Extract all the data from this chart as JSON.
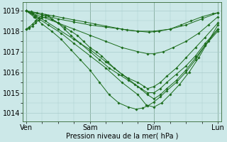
{
  "xlabel": "Pression niveau de la mer( hPa )",
  "bg_color": "#cce8e8",
  "grid_color": "#aacccc",
  "line_color": "#1a6b1a",
  "marker": "D",
  "markersize": 1.8,
  "linewidth": 0.7,
  "ylim": [
    1013.6,
    1019.4
  ],
  "yticks": [
    1014,
    1015,
    1016,
    1017,
    1018,
    1019
  ],
  "xtick_labels": [
    "Ven",
    "Sam",
    "Dim",
    "Lun"
  ],
  "xtick_positions": [
    0,
    1,
    2,
    3
  ],
  "detailed_series": [
    {
      "x": [
        0.0,
        0.08,
        0.17,
        0.25,
        0.42,
        0.58,
        0.75,
        0.92,
        1.08,
        1.25,
        1.42,
        1.58,
        1.75,
        1.92,
        2.08,
        2.25,
        2.42,
        2.58,
        2.75,
        2.92,
        3.0
      ],
      "y": [
        1019.0,
        1018.95,
        1018.9,
        1018.85,
        1018.75,
        1018.65,
        1018.55,
        1018.45,
        1018.35,
        1018.25,
        1018.15,
        1018.05,
        1018.0,
        1017.95,
        1018.0,
        1018.1,
        1018.3,
        1018.5,
        1018.7,
        1018.85,
        1018.9
      ]
    },
    {
      "x": [
        0.0,
        0.1,
        0.25,
        0.5,
        0.75,
        1.0,
        1.25,
        1.5,
        1.75,
        2.0,
        2.25,
        2.5,
        2.75,
        3.0
      ],
      "y": [
        1019.0,
        1018.9,
        1018.8,
        1018.6,
        1018.45,
        1018.3,
        1018.2,
        1018.1,
        1018.0,
        1018.0,
        1018.1,
        1018.3,
        1018.6,
        1018.9
      ]
    },
    {
      "x": [
        0.0,
        0.1,
        0.25,
        0.5,
        0.75,
        1.0,
        1.25,
        1.5,
        1.75,
        1.9,
        2.0,
        2.15,
        2.3,
        2.5,
        2.7,
        2.85,
        3.0
      ],
      "y": [
        1019.0,
        1018.85,
        1018.7,
        1018.4,
        1018.1,
        1017.8,
        1017.5,
        1017.2,
        1017.0,
        1016.9,
        1016.9,
        1017.0,
        1017.2,
        1017.5,
        1017.9,
        1018.3,
        1018.7
      ]
    },
    {
      "x": [
        0.0,
        0.05,
        0.1,
        0.15,
        0.2,
        0.25,
        0.3,
        0.35,
        0.4,
        0.5,
        0.6,
        0.7,
        0.8,
        0.9,
        1.0,
        1.1,
        1.18,
        1.28,
        1.38,
        1.5,
        1.6,
        1.75,
        1.85,
        1.9,
        2.0,
        2.1,
        2.2,
        2.35,
        2.5,
        2.65,
        2.8,
        3.0
      ],
      "y": [
        1018.1,
        1018.2,
        1018.35,
        1018.5,
        1018.65,
        1018.75,
        1018.8,
        1018.75,
        1018.6,
        1018.4,
        1018.2,
        1018.0,
        1017.8,
        1017.5,
        1017.2,
        1017.0,
        1016.8,
        1016.5,
        1016.2,
        1015.9,
        1015.7,
        1015.5,
        1015.3,
        1015.2,
        1015.3,
        1015.5,
        1015.8,
        1016.2,
        1016.7,
        1017.2,
        1017.7,
        1018.4
      ]
    },
    {
      "x": [
        0.0,
        0.05,
        0.1,
        0.15,
        0.2,
        0.25,
        0.3,
        0.4,
        0.5,
        0.6,
        0.7,
        0.85,
        1.0,
        1.15,
        1.3,
        1.45,
        1.6,
        1.7,
        1.8,
        1.9,
        2.0,
        2.1,
        2.2,
        2.35,
        2.5,
        2.65,
        2.8,
        3.0
      ],
      "y": [
        1018.1,
        1018.15,
        1018.25,
        1018.4,
        1018.55,
        1018.65,
        1018.7,
        1018.6,
        1018.4,
        1018.1,
        1017.8,
        1017.4,
        1017.0,
        1016.6,
        1016.2,
        1015.9,
        1015.6,
        1015.4,
        1015.2,
        1015.0,
        1015.0,
        1015.2,
        1015.5,
        1015.9,
        1016.3,
        1016.8,
        1017.4,
        1018.1
      ]
    },
    {
      "x": [
        0.0,
        0.15,
        0.3,
        0.5,
        0.75,
        1.0,
        1.25,
        1.5,
        1.75,
        1.9,
        2.0,
        2.1,
        2.2,
        2.35,
        2.5,
        2.65,
        2.8,
        3.0
      ],
      "y": [
        1019.0,
        1018.75,
        1018.5,
        1018.1,
        1017.6,
        1017.1,
        1016.5,
        1015.9,
        1015.3,
        1014.9,
        1014.7,
        1014.9,
        1015.2,
        1015.6,
        1016.1,
        1016.7,
        1017.3,
        1018.0
      ]
    },
    {
      "x": [
        0.0,
        0.15,
        0.35,
        0.55,
        0.75,
        1.0,
        1.25,
        1.5,
        1.75,
        1.88,
        2.0,
        2.12,
        2.25,
        2.4,
        2.55,
        2.7,
        2.85,
        3.0
      ],
      "y": [
        1019.0,
        1018.7,
        1018.3,
        1017.9,
        1017.4,
        1016.8,
        1016.2,
        1015.5,
        1014.9,
        1014.4,
        1014.3,
        1014.5,
        1014.9,
        1015.4,
        1016.0,
        1016.7,
        1017.5,
        1018.3
      ]
    },
    {
      "x": [
        0.0,
        0.12,
        0.25,
        0.4,
        0.55,
        0.7,
        0.85,
        1.0,
        1.15,
        1.3,
        1.45,
        1.6,
        1.72,
        1.82,
        1.9,
        2.0,
        2.1,
        2.2,
        2.35,
        2.5,
        2.65,
        2.8,
        3.0
      ],
      "y": [
        1019.0,
        1018.7,
        1018.35,
        1018.0,
        1017.6,
        1017.1,
        1016.6,
        1016.1,
        1015.5,
        1014.9,
        1014.5,
        1014.3,
        1014.2,
        1014.25,
        1014.35,
        1014.55,
        1014.8,
        1015.1,
        1015.5,
        1016.0,
        1016.6,
        1017.3,
        1018.1
      ]
    }
  ]
}
